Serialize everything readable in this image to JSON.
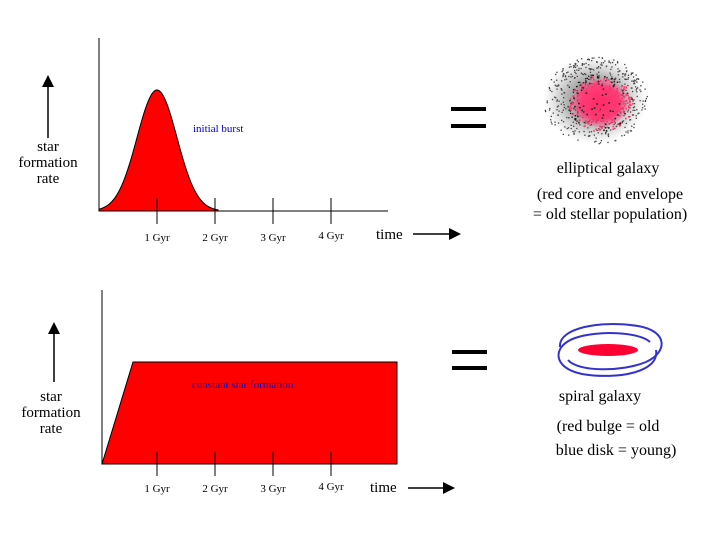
{
  "colors": {
    "fill_red": "#ff0000",
    "galaxy_pink": "#ff3366",
    "disk_blue": "#3333cc",
    "label_blue": "#0000cc",
    "ink": "#000000"
  },
  "top_panel": {
    "ylabel": [
      "star",
      "formation",
      "rate"
    ],
    "annotation": "initial burst",
    "ticks": [
      "1 Gyr",
      "2 Gyr",
      "3 Gyr",
      "4 Gyr"
    ],
    "xlabel": "time",
    "equals": "=",
    "galaxy_name": "elliptical galaxy",
    "galaxy_note": [
      "(red core and envelope",
      "= old stellar population)"
    ]
  },
  "bottom_panel": {
    "ylabel": [
      "star",
      "formation",
      "rate"
    ],
    "annotation": "constant star formation",
    "ticks": [
      "1 Gyr",
      "2 Gyr",
      "3 Gyr",
      "4 Gyr"
    ],
    "xlabel": "time",
    "equals": "=",
    "galaxy_name": "spiral galaxy",
    "galaxy_note": [
      "(red bulge = old",
      "blue disk = young)"
    ]
  },
  "icons": {
    "up_arrow": "up-arrow-icon",
    "right_arrow": "right-arrow-icon",
    "elliptical": "elliptical-galaxy-icon",
    "spiral": "spiral-galaxy-icon"
  }
}
